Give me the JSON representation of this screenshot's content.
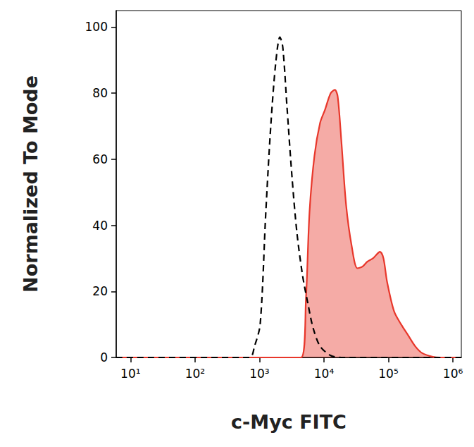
{
  "chart_data": {
    "type": "line",
    "x_label": "c-Myc FITC",
    "y_label": "Normalized To Mode",
    "log": "x",
    "grid": false,
    "xlim": [
      6,
      1350000
    ],
    "ylim": [
      0,
      105
    ],
    "xticks": [
      {
        "value": 10,
        "label": "10¹"
      },
      {
        "value": 100,
        "label": "10²"
      },
      {
        "value": 1000,
        "label": "10³"
      },
      {
        "value": 10000,
        "label": "10⁴"
      },
      {
        "value": 100000,
        "label": "10⁵"
      },
      {
        "value": 1000000,
        "label": "10⁶"
      }
    ],
    "yticks": [
      0,
      20,
      40,
      60,
      80,
      100
    ],
    "series": [
      {
        "type": "line",
        "color": "#000000",
        "line_style": "dashed",
        "x": [
          6,
          703,
          838,
          1025,
          1254,
          1496,
          1783,
          2074,
          2296,
          2668,
          3184,
          3796,
          4643,
          5675,
          6776,
          8716,
          12700,
          18540,
          1350000
        ],
        "values": [
          0,
          0,
          3.4,
          10,
          44,
          70,
          89,
          97,
          94,
          76,
          55,
          38,
          25,
          16,
          9,
          3.4,
          0.6,
          0,
          0
        ]
      },
      {
        "type": "area",
        "color": "#e8372b",
        "x": [
          6,
          4416,
          5264,
          5970,
          7118,
          8710,
          10380,
          12700,
          14760,
          16330,
          18540,
          22090,
          27040,
          33040,
          39450,
          46990,
          57540,
          73970,
          83780,
          95060,
          122200,
          157300,
          202400,
          260200,
          334800,
          488700,
          628300,
          1350000
        ],
        "values": [
          0,
          0,
          18,
          44,
          61,
          71,
          75,
          80,
          81,
          79,
          66,
          46,
          33.5,
          27,
          27.5,
          29,
          30,
          32,
          30,
          23,
          14,
          10,
          6.7,
          3.4,
          1.3,
          0.2,
          0,
          0
        ]
      }
    ]
  }
}
